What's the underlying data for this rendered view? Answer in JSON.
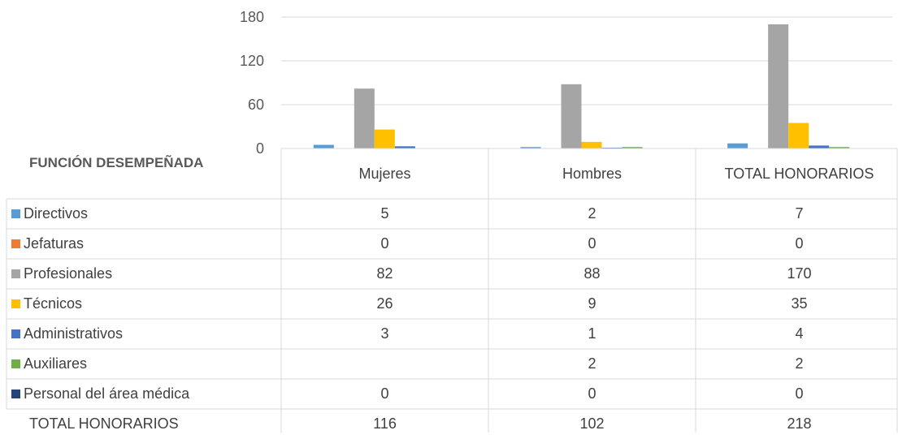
{
  "chart_data": {
    "type": "bar",
    "title": "",
    "xlabel": "",
    "ylabel": "",
    "ylim": [
      0,
      180
    ],
    "yticks": [
      0,
      60,
      120,
      180
    ],
    "grid": true,
    "legend": "table-rows",
    "table_header": "FUNCIÓN DESEMPEÑADA",
    "categories": [
      "Mujeres",
      "Hombres",
      "TOTAL HONORARIOS"
    ],
    "series": [
      {
        "name": "Directivos",
        "color": "#5B9BD5",
        "values": [
          5,
          2,
          7
        ],
        "display": [
          "5",
          "2",
          "7"
        ]
      },
      {
        "name": "Jefaturas",
        "color": "#ED7D31",
        "values": [
          0,
          0,
          0
        ],
        "display": [
          "0",
          "0",
          "0"
        ]
      },
      {
        "name": "Profesionales",
        "color": "#A5A5A5",
        "values": [
          82,
          88,
          170
        ],
        "display": [
          "82",
          "88",
          "170"
        ]
      },
      {
        "name": "Técnicos",
        "color": "#FFC000",
        "values": [
          26,
          9,
          35
        ],
        "display": [
          "26",
          "9",
          "35"
        ]
      },
      {
        "name": "Administrativos",
        "color": "#4472C4",
        "values": [
          3,
          1,
          4
        ],
        "display": [
          "3",
          "1",
          "4"
        ]
      },
      {
        "name": "Auxiliares",
        "color": "#70AD47",
        "values": [
          null,
          2,
          2
        ],
        "display": [
          "",
          "2",
          "2"
        ]
      },
      {
        "name": "Personal del área médica",
        "color": "#264478",
        "values": [
          0,
          0,
          0
        ],
        "display": [
          "0",
          "0",
          "0"
        ]
      }
    ],
    "total_row": {
      "label": "TOTAL HONORARIOS",
      "values": [
        "116",
        "102",
        "218"
      ]
    }
  }
}
